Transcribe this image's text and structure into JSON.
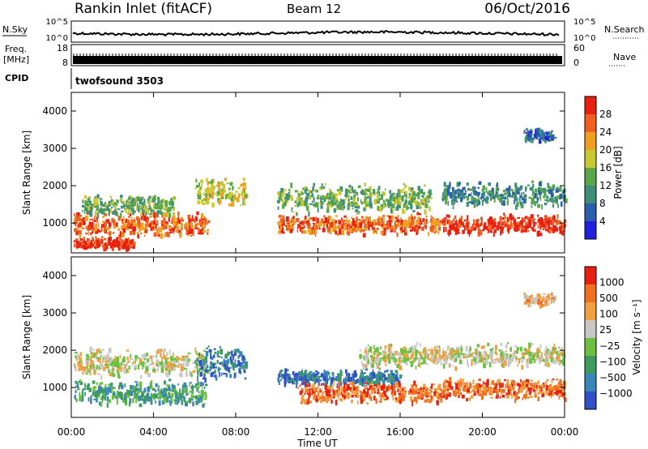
{
  "header": {
    "station": "Rankin Inlet (fitACF)",
    "beam": "Beam 12",
    "date": "06/Oct/2016"
  },
  "top_strips": {
    "nsky_label": "N.Sky",
    "nsky_ticks": [
      "10^5",
      "10^0"
    ],
    "nsearch_label": "N.Search",
    "nsearch_ticks": [
      "10^5",
      "10^0"
    ],
    "freq_label_1": "Freq.",
    "freq_label_2": "[MHz]",
    "freq_ticks": [
      "18",
      "8"
    ],
    "nave_label": "Nave",
    "nave_ticks": [
      "60",
      "0"
    ],
    "cpid_label": "CPID",
    "cpid_value": "twofsound 3503"
  },
  "colors": {
    "power_scale": [
      "#2020e0",
      "#2a5fb0",
      "#3f8e7a",
      "#5aa64a",
      "#c8c830",
      "#f0a020",
      "#f06020",
      "#e82010"
    ],
    "velocity_scale": [
      "#3050c8",
      "#3a86b8",
      "#3f9a5f",
      "#6cc040",
      "#c8c8c8",
      "#f0a040",
      "#f07020",
      "#e82010"
    ]
  },
  "chart_data": [
    {
      "type": "heatmap",
      "panel": "power",
      "ylabel": "Slant Range [km]",
      "y_ticks": [
        "4000",
        "3000",
        "2000",
        "1000"
      ],
      "ylim": [
        200,
        4500
      ],
      "x_ticks": [
        "00:00",
        "04:00",
        "08:00",
        "12:00",
        "16:00",
        "20:00",
        "00:00"
      ],
      "xlim_hours": [
        0,
        24
      ],
      "colorbar_label": "Power [dB]",
      "colorbar_ticks": [
        "28",
        "24",
        "20",
        "16",
        "12",
        "8",
        "4"
      ],
      "bands": [
        {
          "t_start": 0.1,
          "t_end": 6.7,
          "r_center": 1000,
          "r_width": 600,
          "level": 6
        },
        {
          "t_start": 0.1,
          "t_end": 3.0,
          "r_center": 500,
          "r_width": 300,
          "level": 7
        },
        {
          "t_start": 0.5,
          "t_end": 5.0,
          "r_center": 1500,
          "r_width": 500,
          "level": 3
        },
        {
          "t_start": 6.0,
          "t_end": 8.5,
          "r_center": 1900,
          "r_width": 700,
          "level": 4
        },
        {
          "t_start": 10.0,
          "t_end": 18.0,
          "r_center": 1000,
          "r_width": 500,
          "level": 6
        },
        {
          "t_start": 10.0,
          "t_end": 17.5,
          "r_center": 1700,
          "r_width": 700,
          "level": 3
        },
        {
          "t_start": 18.0,
          "t_end": 24.0,
          "r_center": 1000,
          "r_width": 500,
          "level": 7
        },
        {
          "t_start": 18.0,
          "t_end": 24.0,
          "r_center": 1800,
          "r_width": 600,
          "level": 2
        },
        {
          "t_start": 22.0,
          "t_end": 23.5,
          "r_center": 3400,
          "r_width": 300,
          "level": 1
        }
      ]
    },
    {
      "type": "heatmap",
      "panel": "velocity",
      "ylabel": "Slant Range [km]",
      "y_ticks": [
        "4000",
        "3000",
        "2000",
        "1000"
      ],
      "ylim": [
        200,
        4500
      ],
      "x_ticks": [
        "00:00",
        "04:00",
        "08:00",
        "12:00",
        "16:00",
        "20:00",
        "00:00"
      ],
      "xlim_hours": [
        0,
        24
      ],
      "xlabel": "Time UT",
      "colorbar_label": "Velocity [m s⁻¹]",
      "colorbar_ticks": [
        "1000",
        "500",
        "100",
        "25",
        "−25",
        "−100",
        "−500",
        "−1000"
      ],
      "bands": [
        {
          "t_start": 0.1,
          "t_end": 6.5,
          "r_center": 1700,
          "r_width": 700,
          "level": 4
        },
        {
          "t_start": 0.1,
          "t_end": 6.5,
          "r_center": 900,
          "r_width": 600,
          "level": 2
        },
        {
          "t_start": 6.0,
          "t_end": 8.5,
          "r_center": 1700,
          "r_width": 800,
          "level": 1
        },
        {
          "t_start": 10.0,
          "t_end": 16.0,
          "r_center": 1300,
          "r_width": 400,
          "level": 1
        },
        {
          "t_start": 11.0,
          "t_end": 18.0,
          "r_center": 900,
          "r_width": 500,
          "level": 6
        },
        {
          "t_start": 14.0,
          "t_end": 24.0,
          "r_center": 1900,
          "r_width": 600,
          "level": 4
        },
        {
          "t_start": 18.0,
          "t_end": 24.0,
          "r_center": 1000,
          "r_width": 500,
          "level": 6
        },
        {
          "t_start": 22.0,
          "t_end": 23.5,
          "r_center": 3400,
          "r_width": 300,
          "level": 5
        }
      ]
    }
  ]
}
